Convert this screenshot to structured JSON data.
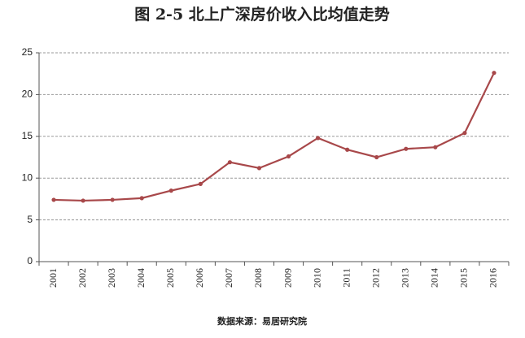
{
  "chart_data": {
    "type": "line",
    "title": "图 2-5 北上广深房价收入比均值走势",
    "source": "数据来源：易居研究院",
    "categories": [
      "2001",
      "2002",
      "2003",
      "2004",
      "2005",
      "2006",
      "2007",
      "2008",
      "2009",
      "2010",
      "2011",
      "2012",
      "2013",
      "2014",
      "2015",
      "2016"
    ],
    "values": [
      7.4,
      7.3,
      7.4,
      7.6,
      8.5,
      9.3,
      11.9,
      11.2,
      12.6,
      14.8,
      13.4,
      12.5,
      13.5,
      13.7,
      15.4,
      22.6
    ],
    "color": "#a8484a",
    "ylim": [
      0,
      25
    ],
    "yticks": [
      0,
      5,
      10,
      15,
      20,
      25
    ],
    "grid": true
  }
}
